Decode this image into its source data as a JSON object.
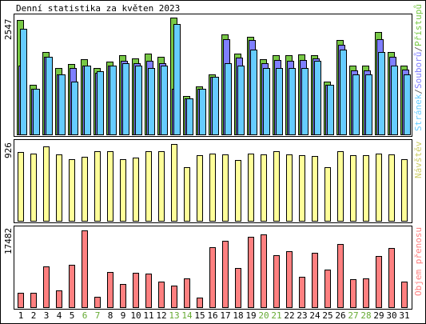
{
  "chart_data": {
    "type": "bar",
    "title": "Denní statistika za květen 2023",
    "categories": [
      "1",
      "2",
      "3",
      "4",
      "5",
      "6",
      "7",
      "8",
      "9",
      "10",
      "11",
      "12",
      "13",
      "14",
      "15",
      "16",
      "17",
      "18",
      "19",
      "20",
      "21",
      "22",
      "23",
      "24",
      "25",
      "26",
      "27",
      "28",
      "29",
      "30",
      "31"
    ],
    "weekend_days": [
      "6",
      "7",
      "13",
      "14",
      "20",
      "21",
      "27",
      "28"
    ],
    "panels": [
      {
        "id": "hits",
        "ymax_label": "2547",
        "ymax": 2547,
        "side_label": [
          {
            "text": "Stránek",
            "color": "#66ccff"
          },
          {
            "text": "/",
            "color": "#666666"
          },
          {
            "text": "Souborů",
            "color": "#7f7fff"
          },
          {
            "text": "/",
            "color": "#666666"
          },
          {
            "text": "Přístupů",
            "color": "#78c846"
          }
        ],
        "series": [
          {
            "name": "Přístupů",
            "color": "#78c846",
            "values": [
              2500,
              1080,
              1800,
              1450,
              1530,
              1640,
              1440,
              1590,
              1720,
              1650,
              1760,
              1700,
              2547,
              830,
              1050,
              1300,
              2180,
              1770,
              2130,
              1640,
              1730,
              1730,
              1750,
              1730,
              1160,
              2060,
              1500,
              1500,
              2230,
              1800,
              1500
            ]
          },
          {
            "name": "Souborů",
            "color": "#7f7fff",
            "values": [
              1500,
              1000,
              1700,
              1300,
              1450,
              1500,
              1340,
              1500,
              1600,
              1550,
              1600,
              1550,
              1000,
              780,
              990,
              1250,
              2070,
              1680,
              2050,
              1550,
              1630,
              1610,
              1630,
              1650,
              1090,
              1950,
              1400,
              1400,
              2080,
              1700,
              1420
            ]
          },
          {
            "name": "Stránek",
            "color": "#66ccff",
            "values": [
              2300,
              1000,
              1700,
              1300,
              1150,
              1500,
              1380,
              1500,
              1550,
              1500,
              1450,
              1500,
              2400,
              780,
              990,
              1250,
              1550,
              1500,
              1850,
              1450,
              1450,
              1450,
              1450,
              1600,
              1090,
              1850,
              1300,
              1300,
              1800,
              1500,
              1300
            ]
          }
        ]
      },
      {
        "id": "visits",
        "ymax_label": "926",
        "ymax": 926,
        "side_label": [
          {
            "text": "Návštěv",
            "color": "#cccc66"
          }
        ],
        "series": [
          {
            "name": "Návštěv",
            "color": "#ffff99",
            "values": [
              830,
              810,
              900,
              800,
              740,
              770,
              840,
              840,
              740,
              760,
              840,
              840,
              926,
              650,
              790,
              810,
              800,
              730,
              810,
              800,
              840,
              800,
              790,
              780,
              650,
              840,
              790,
              790,
              810,
              800,
              740
            ]
          }
        ]
      },
      {
        "id": "traffic",
        "ymax_label": "17482",
        "ymax": 17482,
        "side_label": [
          {
            "text": "Objem přenosu",
            "color": "#ff8080"
          }
        ],
        "series": [
          {
            "name": "Objem přenosu",
            "color": "#ff8080",
            "values": [
              3300,
              3300,
              9300,
              3800,
              9600,
              17482,
              2400,
              8000,
              5300,
              7900,
              7700,
              5900,
              5000,
              6600,
              2100,
              13600,
              15100,
              9000,
              16100,
              16600,
              11800,
              12700,
              7000,
              12300,
              8500,
              14400,
              6300,
              6600,
              11600,
              13400,
              5900
            ]
          }
        ]
      }
    ]
  }
}
